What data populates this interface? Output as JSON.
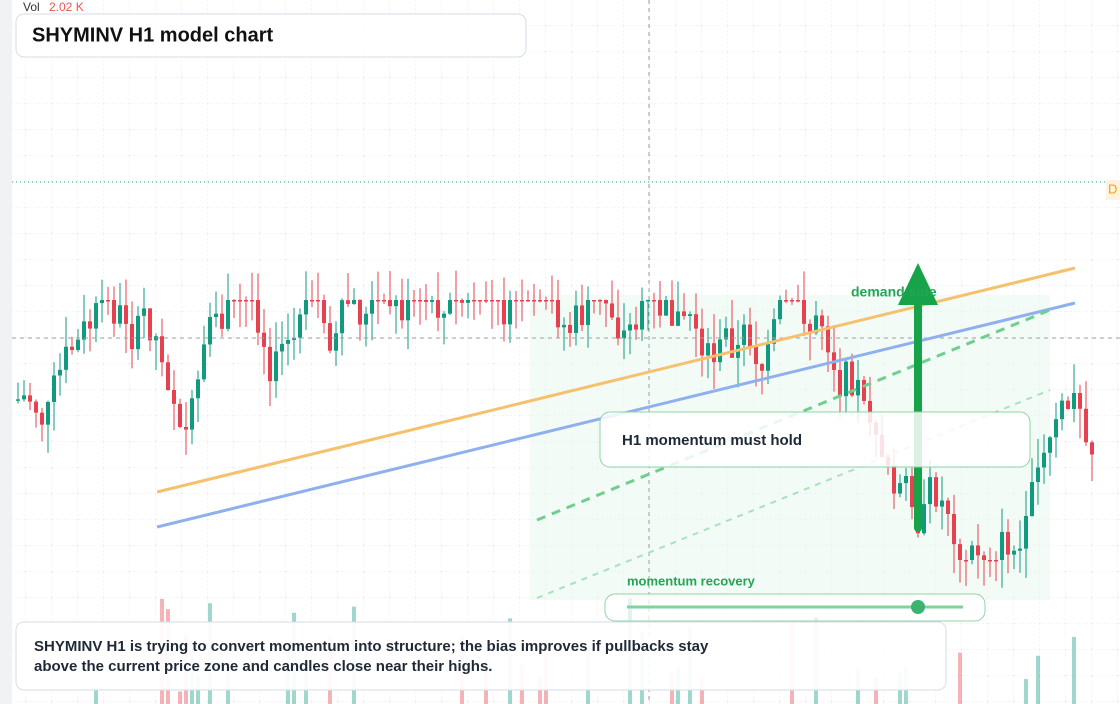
{
  "header": {
    "vol_label": "Vol",
    "vol_value": "2.02 K",
    "title": "SHYMINV H1 model chart"
  },
  "price_badge": "D",
  "annotations": {
    "zone_label": "demand side",
    "callout": "H1 momentum must hold",
    "slider_label": "momentum recovery"
  },
  "summary": {
    "line1": "SHYMINV H1 is trying to convert momentum into structure; the bias improves if pullbacks stay",
    "line2": "above the current price zone and candles close near their highs."
  }
}
